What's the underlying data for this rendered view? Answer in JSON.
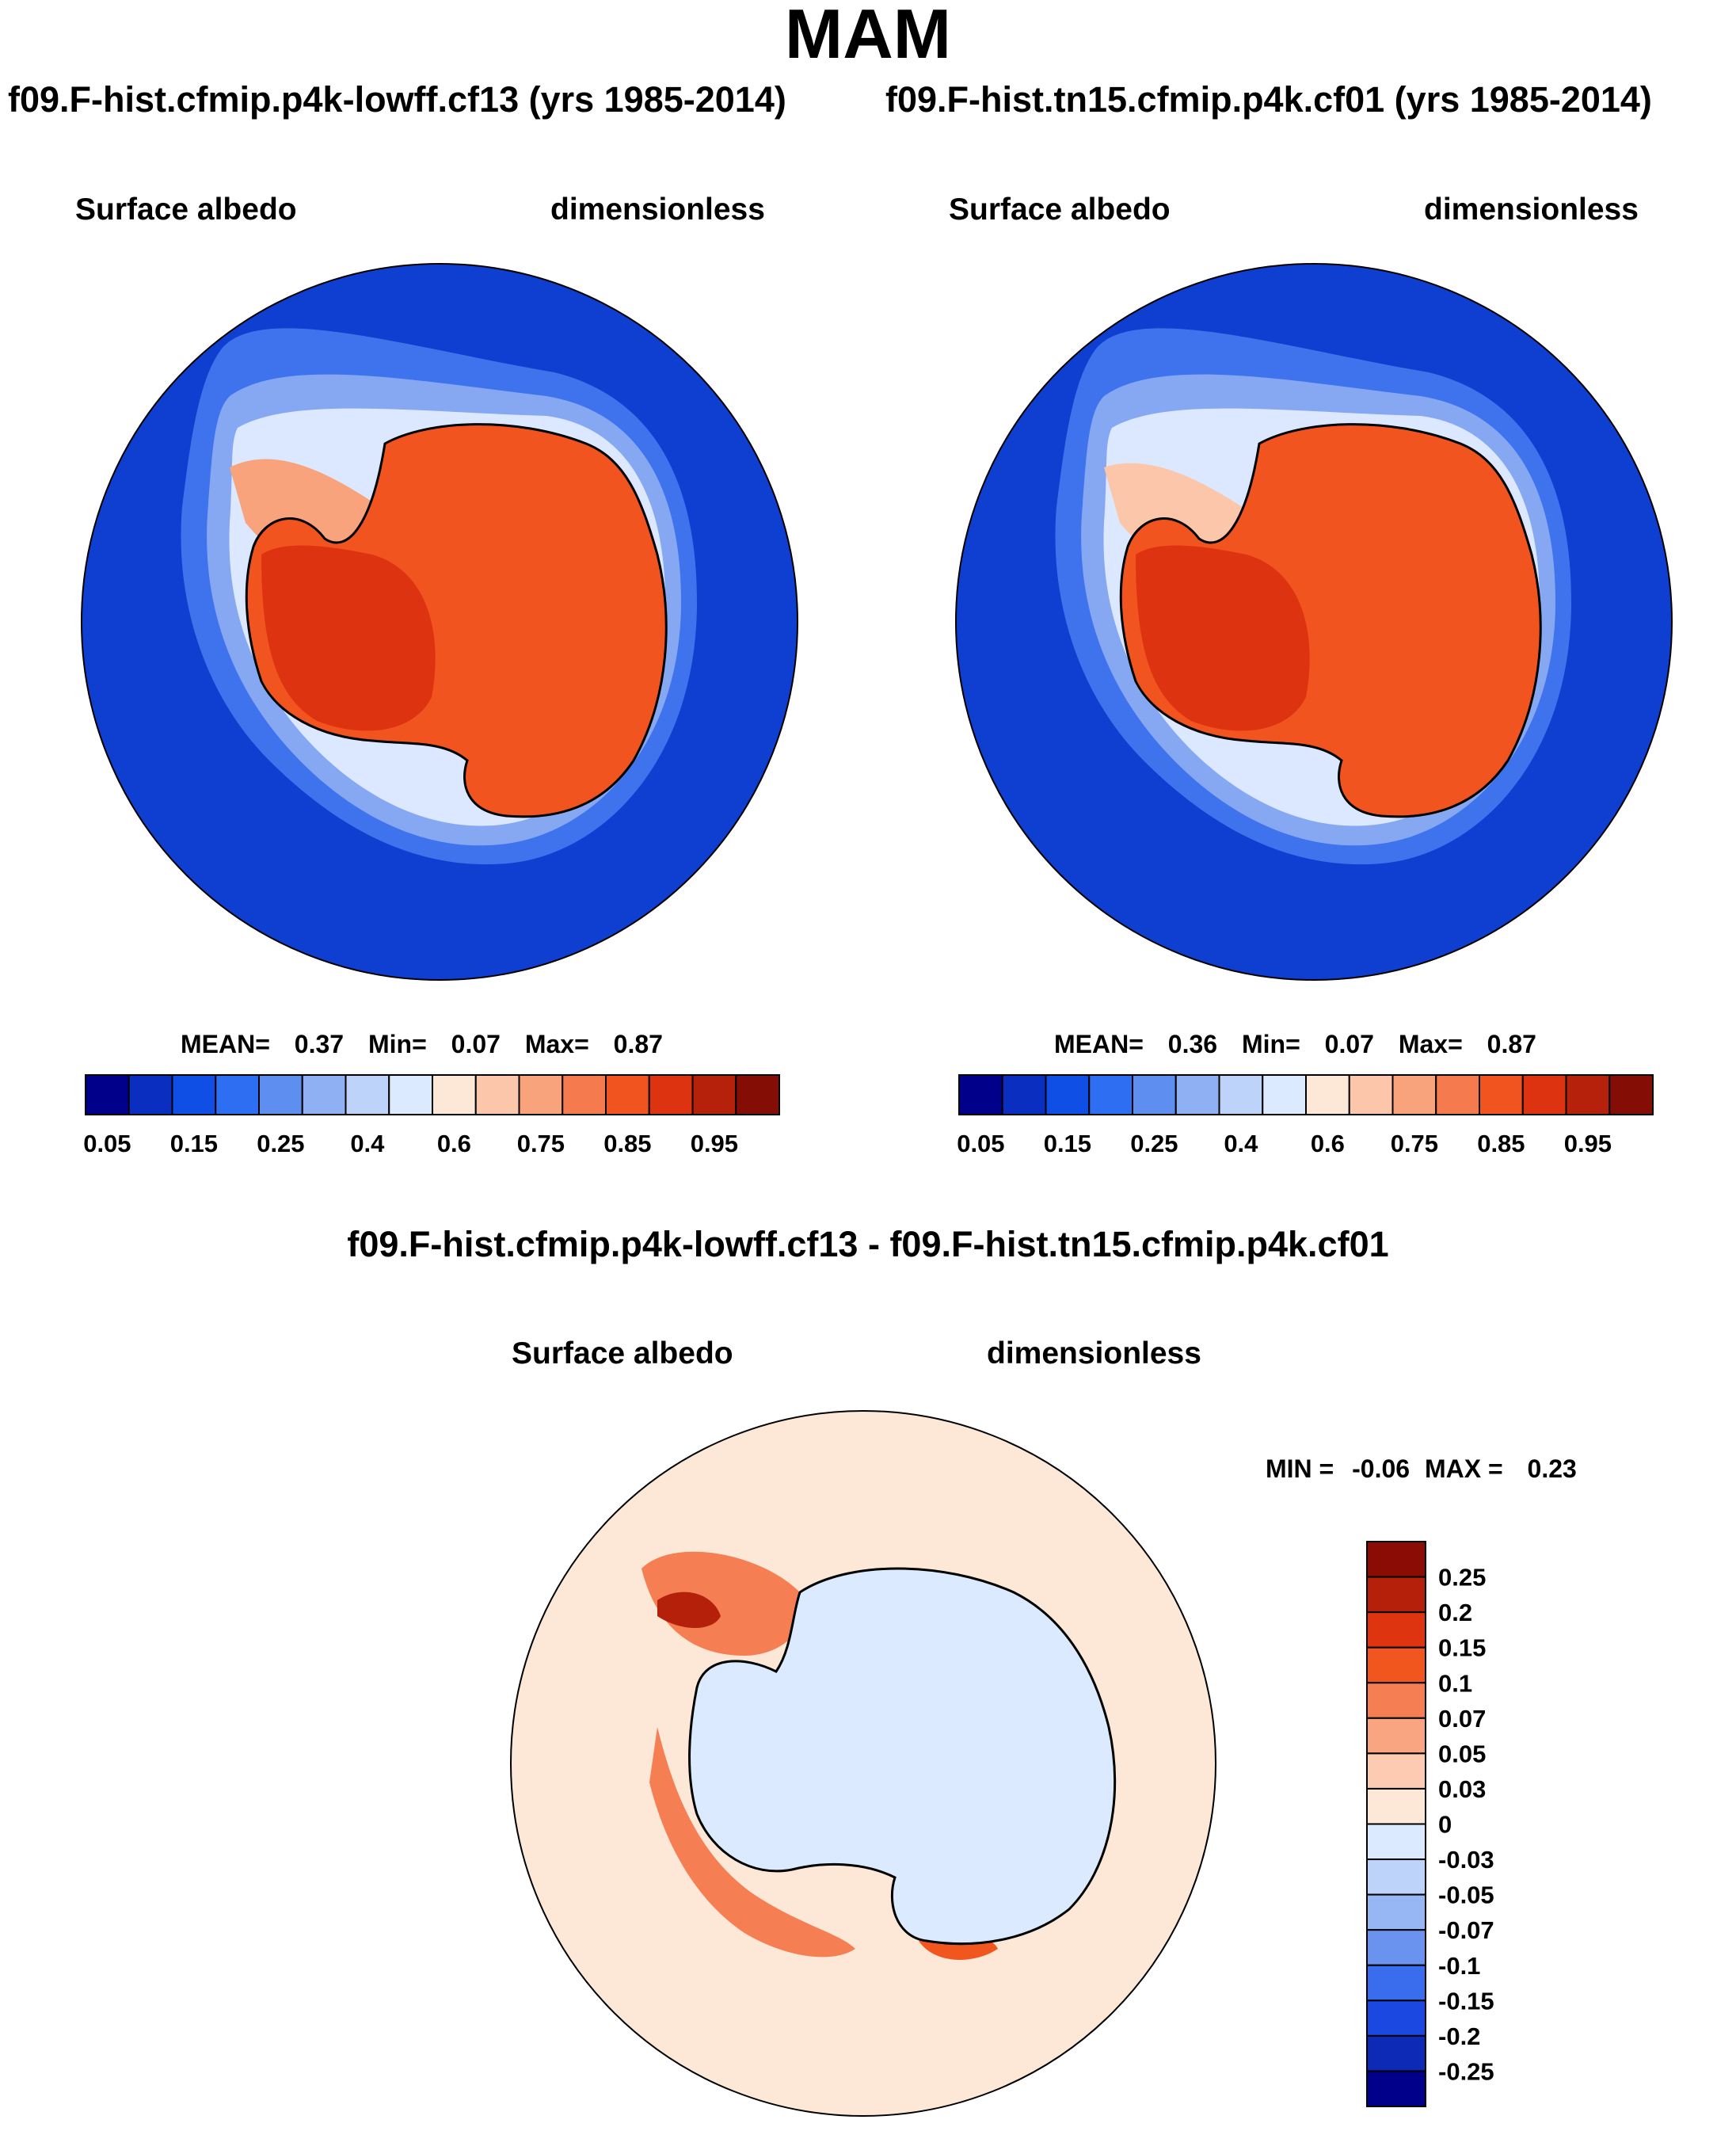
{
  "season": "MAM",
  "panels": [
    {
      "case_label": "f09.F-hist.cfmip.p4k-lowff.cf13 (yrs 1985-2014)",
      "variable": "Surface albedo",
      "units": "dimensionless",
      "stats": {
        "mean_label": "MEAN=",
        "mean": "0.37",
        "min_label": "Min=",
        "min": "0.07",
        "max_label": "Max=",
        "max": "0.87"
      }
    },
    {
      "case_label": "f09.F-hist.tn15.cfmip.p4k.cf01 (yrs 1985-2014)",
      "variable": "Surface albedo",
      "units": "dimensionless",
      "stats": {
        "mean_label": "MEAN=",
        "mean": "0.36",
        "min_label": "Min=",
        "min": "0.07",
        "max_label": "Max=",
        "max": "0.87"
      }
    }
  ],
  "colorbar_top": {
    "ticks": [
      "0.05",
      "0.15",
      "0.25",
      "0.4",
      "0.6",
      "0.75",
      "0.85",
      "0.95"
    ],
    "colors": [
      "#00008a",
      "#0a2fc0",
      "#0f4fe6",
      "#2e6ef2",
      "#5d8ef0",
      "#8fb1f3",
      "#bed3fa",
      "#dbeaff",
      "#fde8d8",
      "#fcc6aa",
      "#f9a37c",
      "#f57a4d",
      "#f2541f",
      "#de3310",
      "#b5210a",
      "#840d05"
    ]
  },
  "difference": {
    "title": "f09.F-hist.cfmip.p4k-lowff.cf13 - f09.F-hist.tn15.cfmip.p4k.cf01",
    "variable": "Surface albedo",
    "units": "dimensionless",
    "minmax": {
      "min_label": "MIN =",
      "min": "-0.06",
      "max_label": "MAX =",
      "max": "0.23"
    },
    "colorbar": {
      "labels_top_to_bottom": [
        "0.25",
        "0.2",
        "0.15",
        "0.1",
        "0.07",
        "0.05",
        "0.03",
        "0",
        "-0.03",
        "-0.05",
        "-0.07",
        "-0.1",
        "-0.15",
        "-0.2",
        "-0.25"
      ],
      "colors_top_to_bottom": [
        "#8a0c05",
        "#b5200a",
        "#de3410",
        "#f2561f",
        "#f57e52",
        "#f9a582",
        "#fccbb2",
        "#fde8d8",
        "#dbeaff",
        "#bed3fa",
        "#97b6f4",
        "#6a93f0",
        "#3a6ded",
        "#1a48e0",
        "#0c2ab5",
        "#00008a"
      ]
    },
    "background_value": "0.03"
  }
}
